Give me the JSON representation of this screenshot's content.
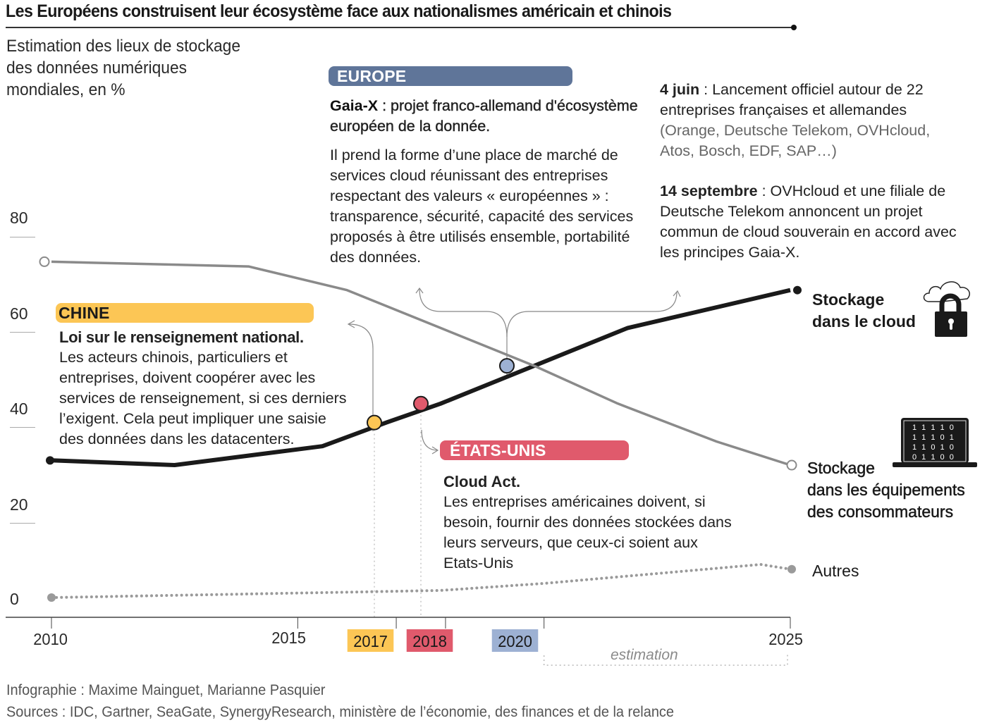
{
  "header": {
    "title": "Les Européens construisent leur écosystème face aux nationalismes américain et chinois",
    "subtitle": "Estimation des lieux de stockage\ndes données numériques\nmondiales, en %"
  },
  "colors": {
    "china": "#fcc655",
    "usa": "#e05a6c",
    "europe": "#5f7599",
    "europe_point": "#9db1d3",
    "cloud_line": "#1a1a1a",
    "devices_line": "#8a8a8a",
    "others_line": "#9a9a9a"
  },
  "annotations": {
    "europe": {
      "badge": "EUROPE",
      "heading_bold": "Gaia-X",
      "heading_rest": " : projet franco-allemand d'écosystème européen de la donnée.",
      "body": "Il prend la forme d’une place de marché de services cloud réunissant des entreprises respectant des valeurs « européennes » : transparence, sécurité, capacité des services proposés à être utilisés ensemble, portabilité des données."
    },
    "europe_dates": [
      {
        "date": "4 juin",
        "text": " : Lancement officiel autour de 22 entreprises françaises et allemandes",
        "extra": "(Orange, Deutsche Telekom, OVHcloud, Atos, Bosch, EDF, SAP…)"
      },
      {
        "date": "14 septembre",
        "text": " : OVHcloud et une filiale de Deutsche Telekom annoncent un projet commun de cloud souverain en accord avec les principes Gaia-X.",
        "extra": ""
      }
    ],
    "china": {
      "badge": "CHINE",
      "heading": "Loi sur le renseignement national.",
      "body": "Les acteurs chinois, particuliers et entreprises, doivent coopérer avec les services de renseignement, si ces derniers l’exigent. Cela peut impliquer une saisie des données dans les datacenters."
    },
    "usa": {
      "badge": "ÉTATS-UNIS",
      "heading": "Cloud Act.",
      "body": "Les entreprises américaines doivent, si besoin, fournir des données stockées dans leurs serveurs, que ceux-ci soient aux Etats-Unis"
    }
  },
  "legend": {
    "cloud": "Stockage\ndans le cloud",
    "devices": "Stockage\ndans les équipements\ndes consommateurs",
    "others": "Autres",
    "cloud_icon": "cloud-lock-icon",
    "devices_icon": "laptop-binary-icon",
    "laptop_binary": [
      "1 1 1 1 0",
      "1 1 1 0 1",
      "1 1 0 1 0",
      "0 1 1 0 0"
    ]
  },
  "axis": {
    "estimation_label": "estimation",
    "event_years": [
      {
        "label": "2017",
        "year": 2017,
        "color": "#fcc655"
      },
      {
        "label": "2018",
        "year": 2018,
        "color": "#e05a6c"
      },
      {
        "label": "2020",
        "year": 2020,
        "color": "#9db1d3"
      }
    ]
  },
  "footer": {
    "credit": "Infographie : Maxime Mainguet, Marianne Pasquier",
    "sources": "Sources : IDC, Gartner, SeaGate, SynergyResearch, ministère de l’économie, des finances et de la relance"
  },
  "chart_data": {
    "type": "line",
    "title": "Les Européens construisent leur écosystème face aux nationalismes américain et chinois",
    "ylabel": "Estimation des lieux de stockage des données numériques mondiales, en %",
    "xlabel": "",
    "xlim": [
      2010,
      2025
    ],
    "ylim": [
      0,
      80
    ],
    "yticks": [
      0,
      20,
      40,
      60,
      80
    ],
    "ytick_labels": [
      "0",
      "20",
      "40",
      "60",
      "80"
    ],
    "xticks": [
      2010,
      2015,
      2017,
      2018,
      2020,
      2025
    ],
    "xtick_labels": [
      "2010",
      "2015",
      "2017",
      "2018",
      "2020",
      "2025"
    ],
    "estimation_range": [
      2020,
      2025
    ],
    "grid": false,
    "legend_position": "right",
    "series": [
      {
        "name": "Stockage dans le cloud",
        "style": "solid-thick",
        "x": [
          2010,
          2012.5,
          2015.5,
          2016.8,
          2017.9,
          2019.8,
          2021.7,
          2025
        ],
        "values": [
          29,
          28,
          32,
          37,
          41,
          49,
          57,
          65
        ]
      },
      {
        "name": "Stockage dans les équipements des consommateurs",
        "style": "solid-gray",
        "x": [
          2010,
          2014,
          2016,
          2017.9,
          2019.8,
          2021.5,
          2023.5,
          2025
        ],
        "values": [
          71,
          70,
          65,
          57,
          49,
          41,
          33,
          28
        ]
      },
      {
        "name": "Autres",
        "style": "dotted",
        "x": [
          2010,
          2017.9,
          2020,
          2024.4,
          2025
        ],
        "values": [
          0,
          1.5,
          3,
          7,
          6
        ]
      }
    ],
    "events": [
      {
        "year": 2017,
        "region": "Chine",
        "y": 37
      },
      {
        "year": 2018,
        "region": "États-Unis",
        "y": 41
      },
      {
        "year": 2020,
        "region": "Europe",
        "y": 49
      }
    ]
  }
}
